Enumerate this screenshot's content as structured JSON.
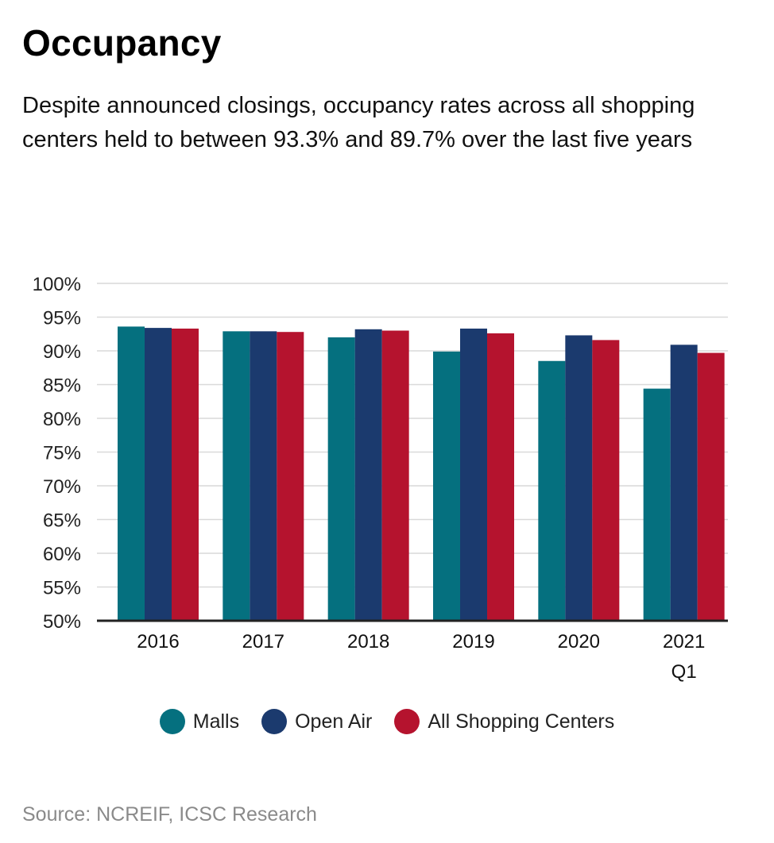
{
  "header": {
    "title": "Occupancy",
    "subtitle": "Despite announced closings, occupancy rates across all shopping centers held to between 93.3% and 89.7% over the last five years"
  },
  "source": "Source: NCREIF, ICSC Research",
  "colors": {
    "malls": "#05707F",
    "open_air": "#1B3A6E",
    "all_shopping_centers": "#B5132E",
    "grid": "#d9d9d9",
    "axis": "#222222"
  },
  "chart_data": {
    "type": "bar",
    "title": "Occupancy",
    "xlabel": "",
    "ylabel": "",
    "ylim": [
      50,
      100
    ],
    "yticks": [
      "100%",
      "95%",
      "90%",
      "85%",
      "80%",
      "75%",
      "70%",
      "65%",
      "60%",
      "55%",
      "50%"
    ],
    "ytick_values": [
      100,
      95,
      90,
      85,
      80,
      75,
      70,
      65,
      60,
      55,
      50
    ],
    "categories": [
      [
        "2016"
      ],
      [
        "2017"
      ],
      [
        "2018"
      ],
      [
        "2019"
      ],
      [
        "2020"
      ],
      [
        "2021",
        "Q1"
      ]
    ],
    "series": [
      {
        "name": "Malls",
        "color_key": "malls",
        "values": [
          93.6,
          92.9,
          92.0,
          89.9,
          88.5,
          84.4
        ]
      },
      {
        "name": "Open Air",
        "color_key": "open_air",
        "values": [
          93.4,
          92.9,
          93.2,
          93.3,
          92.3,
          90.9
        ]
      },
      {
        "name": "All Shopping Centers",
        "color_key": "all_shopping_centers",
        "values": [
          93.3,
          92.8,
          93.0,
          92.6,
          91.6,
          89.7
        ]
      }
    ],
    "grid": true,
    "legend_position": "bottom-center"
  }
}
